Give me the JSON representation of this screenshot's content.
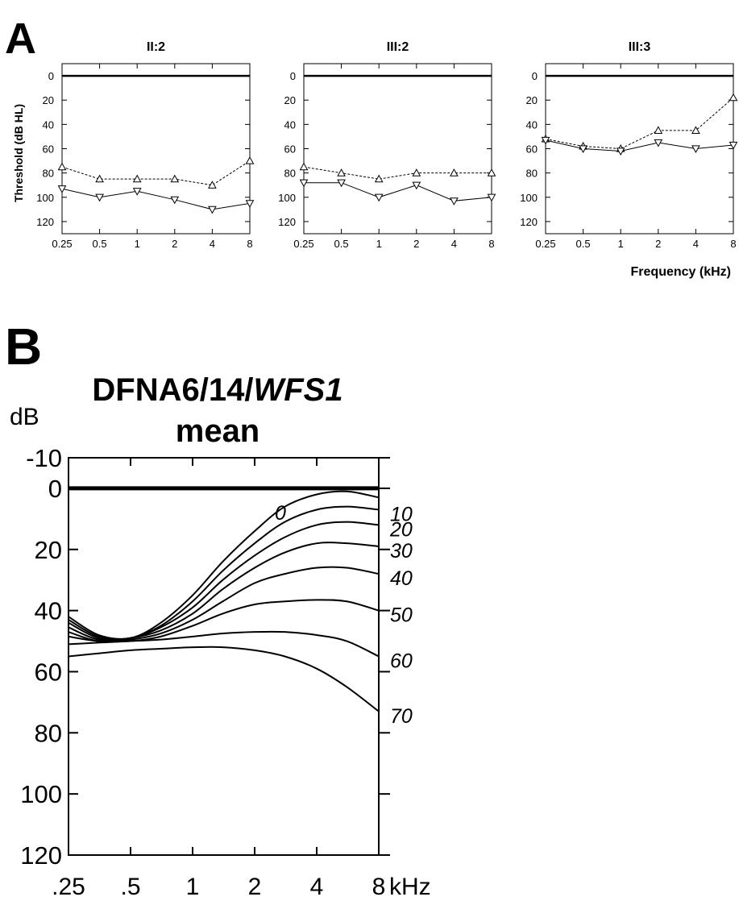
{
  "panel_a": {
    "label": "A",
    "ylabel": "Threshold (dB HL)",
    "xlabel": "Frequency (kHz)"
  },
  "panel_b": {
    "label": "B",
    "title_line1_prefix": "DFNA6/14/",
    "title_line1_italic": "WFS1",
    "title_line2": "mean",
    "yunit": "dB",
    "xunit": "kHz"
  },
  "chart_data": [
    {
      "type": "line",
      "title": "II:2",
      "x": [
        0.25,
        0.5,
        1,
        2,
        4,
        8
      ],
      "x_tick_labels": [
        "0.25",
        "0.5",
        "1",
        "2",
        "4",
        "8"
      ],
      "x_scale": "log",
      "y_tick_labels": [
        "0",
        "20",
        "40",
        "60",
        "80",
        "100",
        "120"
      ],
      "ylim": [
        130,
        -10
      ],
      "y_inverted": true,
      "series": [
        {
          "marker": "triangle-up",
          "line": "dashed",
          "values": [
            75,
            85,
            85,
            85,
            90,
            70
          ]
        },
        {
          "marker": "triangle-down",
          "line": "solid",
          "values": [
            93,
            100,
            95,
            102,
            110,
            105
          ]
        }
      ]
    },
    {
      "type": "line",
      "title": "III:2",
      "x": [
        0.25,
        0.5,
        1,
        2,
        4,
        8
      ],
      "x_tick_labels": [
        "0.25",
        "0.5",
        "1",
        "2",
        "4",
        "8"
      ],
      "x_scale": "log",
      "y_tick_labels": [
        "0",
        "20",
        "40",
        "60",
        "80",
        "100",
        "120"
      ],
      "ylim": [
        130,
        -10
      ],
      "y_inverted": true,
      "series": [
        {
          "marker": "triangle-up",
          "line": "dashed",
          "values": [
            75,
            80,
            85,
            80,
            80,
            80
          ]
        },
        {
          "marker": "triangle-down",
          "line": "solid",
          "values": [
            88,
            88,
            100,
            90,
            103,
            100
          ]
        }
      ]
    },
    {
      "type": "line",
      "title": "III:3",
      "x": [
        0.25,
        0.5,
        1,
        2,
        4,
        8
      ],
      "x_tick_labels": [
        "0.25",
        "0.5",
        "1",
        "2",
        "4",
        "8"
      ],
      "x_scale": "log",
      "y_tick_labels": [
        "0",
        "20",
        "40",
        "60",
        "80",
        "100",
        "120"
      ],
      "ylim": [
        130,
        -10
      ],
      "y_inverted": true,
      "series": [
        {
          "marker": "triangle-up",
          "line": "dashed",
          "values": [
            52,
            58,
            60,
            45,
            45,
            18
          ]
        },
        {
          "marker": "triangle-down",
          "line": "solid",
          "values": [
            53,
            60,
            62,
            55,
            60,
            57
          ]
        }
      ]
    },
    {
      "type": "line",
      "title": "DFNA6/14/WFS1 mean",
      "x_scale": "log",
      "x": [
        0.25,
        0.35,
        0.5,
        0.7,
        1,
        1.4,
        2,
        2.8,
        4,
        5.6,
        8
      ],
      "x_tick_labels": [
        ".25",
        ".5",
        "1",
        "2",
        "4",
        "8"
      ],
      "x_tick_values": [
        0.25,
        0.5,
        1,
        2,
        4,
        8
      ],
      "y_tick_labels": [
        "-10",
        "0",
        "20",
        "40",
        "60",
        "80",
        "100",
        "120"
      ],
      "ylim": [
        120,
        -10
      ],
      "y_inverted": true,
      "series": [
        {
          "name": "0",
          "values": [
            42,
            48,
            49,
            44,
            35,
            24,
            14,
            6,
            2,
            1,
            3
          ]
        },
        {
          "name": "10",
          "values": [
            43,
            48.5,
            49,
            45,
            37,
            27,
            18,
            11,
            7,
            6,
            7
          ]
        },
        {
          "name": "20",
          "values": [
            44,
            49,
            49,
            45.5,
            39,
            30,
            22,
            16,
            12,
            11,
            12
          ]
        },
        {
          "name": "30",
          "values": [
            45.5,
            49.5,
            49,
            46.5,
            41,
            33,
            26,
            21,
            18,
            18,
            19
          ]
        },
        {
          "name": "40",
          "values": [
            47,
            50,
            49.5,
            47.5,
            43,
            37,
            31,
            28,
            26,
            26,
            28
          ]
        },
        {
          "name": "50",
          "values": [
            48.5,
            50,
            50,
            48.5,
            45,
            41,
            38,
            37,
            36.5,
            37,
            40
          ]
        },
        {
          "name": "60",
          "values": [
            51,
            50.5,
            50,
            49.5,
            48.5,
            47.5,
            47,
            47,
            48,
            50,
            55
          ]
        },
        {
          "name": "70",
          "values": [
            55,
            54,
            53,
            52.5,
            52,
            52,
            53,
            55,
            59,
            65,
            73
          ]
        }
      ]
    }
  ]
}
